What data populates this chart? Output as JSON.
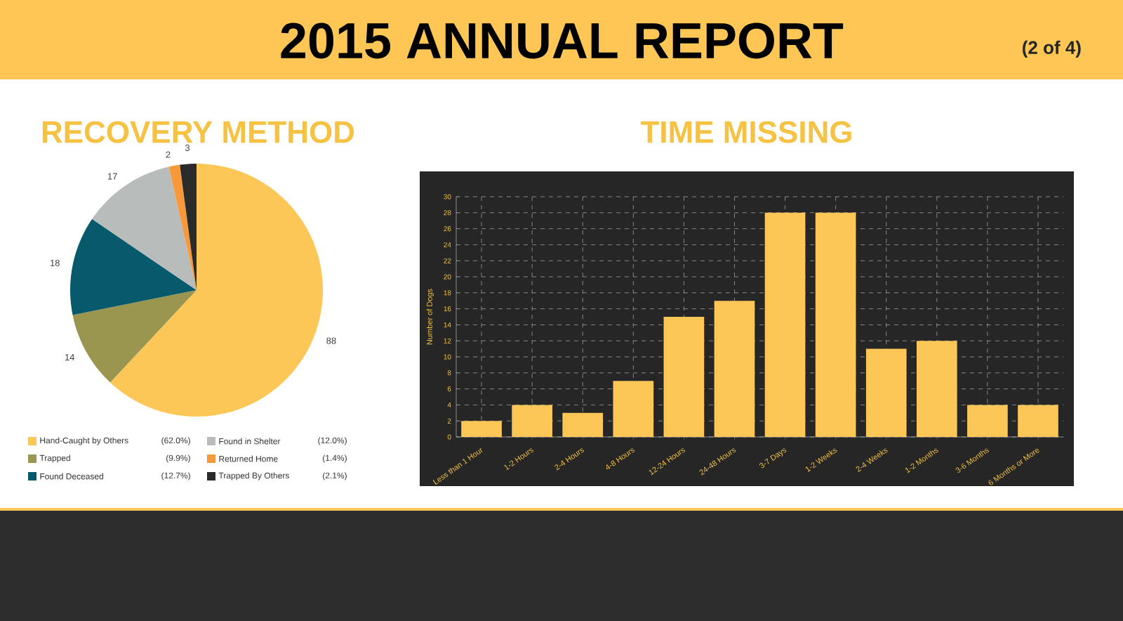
{
  "chart_data": [
    {
      "type": "other",
      "title": "2015 ANNUAL REPORT",
      "annotations": [
        "(2 of 4)"
      ]
    },
    {
      "type": "pie",
      "title": "RECOVERY METHOD",
      "categories": [
        "Hand-Caught by Others",
        "Trapped",
        "Found Deceased",
        "Found in Shelter",
        "Returned Home",
        "Trapped By Others"
      ],
      "values": [
        88,
        14,
        18,
        17,
        2,
        3
      ],
      "colors": [
        "#fcc757",
        "#9a9650",
        "#075a6b",
        "#b8bcbb",
        "#f7993a",
        "#2a2a2a"
      ],
      "data_labels": true,
      "legend": "bottom",
      "annotations": [
        "(62.0%)",
        "(9.9%)",
        "(12.7%)",
        "(12.0%)",
        "(1.4%)",
        "(2.1%)"
      ]
    },
    {
      "type": "bar",
      "title": "TIME MISSING",
      "ylabel": "Number of Dogs",
      "categories": [
        "Less than 1 Hour",
        "1-2 Hours",
        "2-4 Hours",
        "4-8 Hours",
        "12-24 Hours",
        "24-48 Hours",
        "3-7 Days",
        "1-2 Weeks",
        "2-4 Weeks",
        "1-2 Months",
        "3-6 Months",
        "6 Months or More"
      ],
      "values": [
        2,
        4,
        3,
        7,
        15,
        17,
        28,
        28,
        11,
        12,
        4,
        4
      ],
      "color": "#fcc757",
      "ylim": [
        0,
        30
      ],
      "yticks": [
        0,
        2,
        4,
        6,
        8,
        10,
        12,
        14,
        16,
        18,
        20,
        22,
        24,
        26,
        28,
        30
      ],
      "grid": true
    }
  ]
}
